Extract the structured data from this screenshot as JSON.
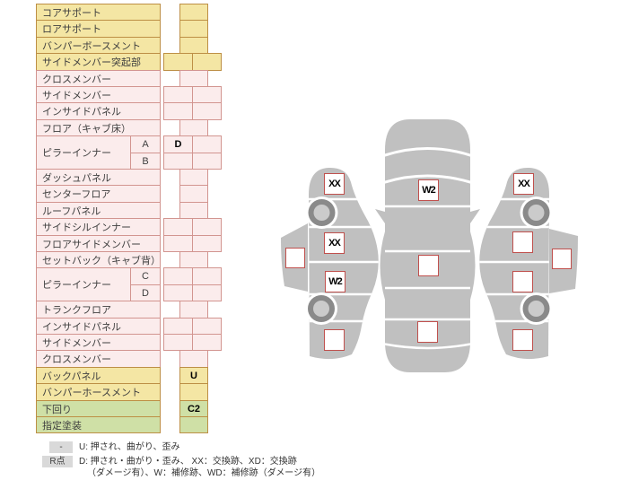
{
  "colors": {
    "yellow_fill": "#F4E6A4",
    "pink_fill": "#FBECEC",
    "green_fill": "#CFE0A6",
    "warm_border": "#BD8F45",
    "pink_border": "#D29590",
    "marker_border": "#C0504D",
    "car_body_gray": "#C0C0C0",
    "wheel_ring_gray": "#8A8A8A",
    "wheel_hub_gray": "#CBCBCB",
    "badge_bg": "#D9D9D9"
  },
  "parts_table": {
    "rows": [
      {
        "label": "コアサポート",
        "color": "yellow",
        "cells": [
          ""
        ]
      },
      {
        "label": "ロアサポート",
        "color": "yellow",
        "cells": [
          ""
        ]
      },
      {
        "label": "バンパーボースメント",
        "color": "yellow",
        "cells": [
          ""
        ]
      },
      {
        "label": "サイドメンバー突起部",
        "color": "yellow",
        "cells": [
          "",
          ""
        ]
      },
      {
        "label": "クロスメンバー",
        "color": "pink",
        "cells": [
          ""
        ]
      },
      {
        "label": "サイドメンバー",
        "color": "pink",
        "cells": [
          "",
          ""
        ]
      },
      {
        "label": "インサイドパネル",
        "color": "pink",
        "cells": [
          "",
          ""
        ]
      },
      {
        "label": "フロア（キャブ床）",
        "color": "pink",
        "cells": [
          ""
        ]
      },
      {
        "label": "ピラーインナー",
        "span": 2,
        "sub": "A",
        "color": "pink",
        "cells": [
          "D",
          ""
        ]
      },
      {
        "sub": "B",
        "color": "pink",
        "cells": [
          "",
          ""
        ]
      },
      {
        "label": "ダッシュパネル",
        "color": "pink",
        "cells": [
          ""
        ]
      },
      {
        "label": "センターフロア",
        "color": "pink",
        "cells": [
          ""
        ]
      },
      {
        "label": "ルーフパネル",
        "color": "pink",
        "cells": [
          ""
        ]
      },
      {
        "label": "サイドシルインナー",
        "color": "pink",
        "cells": [
          "",
          ""
        ]
      },
      {
        "label": "フロアサイドメンバー",
        "color": "pink",
        "cells": [
          "",
          ""
        ]
      },
      {
        "label": "セットバック（キャブ背）",
        "color": "pink",
        "cells": [
          ""
        ]
      },
      {
        "label": "ピラーインナー",
        "span": 2,
        "sub": "C",
        "color": "pink",
        "cells": [
          "",
          ""
        ]
      },
      {
        "sub": "D",
        "color": "pink",
        "cells": [
          "",
          ""
        ]
      },
      {
        "label": "トランクフロア",
        "color": "pink",
        "cells": [
          ""
        ]
      },
      {
        "label": "インサイドパネル",
        "color": "pink",
        "cells": [
          "",
          ""
        ]
      },
      {
        "label": "サイドメンバー",
        "color": "pink",
        "cells": [
          "",
          ""
        ]
      },
      {
        "label": "クロスメンバー",
        "color": "pink",
        "cells": [
          ""
        ]
      },
      {
        "label": "バックパネル",
        "color": "yellow",
        "cells": [
          "U"
        ]
      },
      {
        "label": "バンパーホースメント",
        "color": "yellow",
        "cells": [
          ""
        ]
      },
      {
        "label": "下回り",
        "color": "green",
        "cells": [
          "C2"
        ]
      },
      {
        "label": "指定塗装",
        "color": "green",
        "cells": [
          ""
        ]
      }
    ]
  },
  "diagram": {
    "markers": {
      "left_view": {
        "front_fender": "XX",
        "front_door": "XX",
        "rear_door": "W2",
        "rear_fender": "",
        "outer_sill": ""
      },
      "top_view": {
        "front": "W2",
        "center": "",
        "rear": ""
      },
      "right_view": {
        "front_fender": "XX",
        "front_door": "",
        "rear_door": "",
        "rear_fender": "",
        "outer_sill": ""
      }
    }
  },
  "legend": {
    "badge1": "-",
    "line1": "U: 押され、曲がり、歪み",
    "badge2": "R点",
    "line2": "D: 押され・曲がり・歪み、 XX：交換跡、XD：交換跡",
    "line3": "（ダメージ有）、W：補修跡、WD：補修跡（ダメージ有）"
  }
}
